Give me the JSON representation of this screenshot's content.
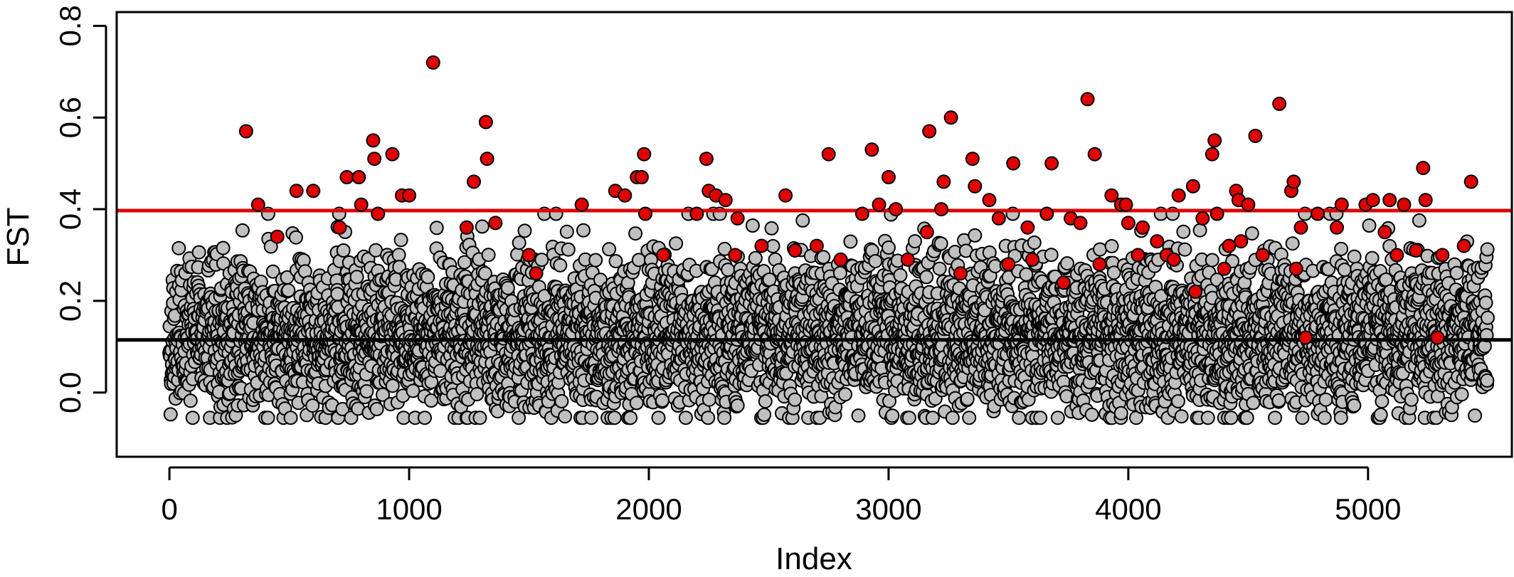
{
  "chart_data": {
    "type": "scatter",
    "title": "",
    "xlabel": "Index",
    "ylabel": "FST",
    "xlim": [
      -220,
      5600
    ],
    "ylim": [
      -0.14,
      0.83
    ],
    "x_ticks": [
      0,
      1000,
      2000,
      3000,
      4000,
      5000
    ],
    "x_tick_labels": [
      "0",
      "1000",
      "2000",
      "3000",
      "4000",
      "5000"
    ],
    "y_ticks": [
      0.0,
      0.2,
      0.4,
      0.6,
      0.8
    ],
    "y_tick_labels": [
      "0.0",
      "0.2",
      "0.4",
      "0.6",
      "0.8"
    ],
    "grid": false,
    "n_points": 5500,
    "reference_lines": [
      {
        "y": 0.397,
        "color": "#e00000"
      },
      {
        "y": 0.115,
        "color": "#000000"
      }
    ],
    "colors": {
      "background_points": "#c0c0c0",
      "outlier_points": "#e00000",
      "point_edge": "#000000"
    },
    "series": [
      {
        "color": "#e00000",
        "x": [
          320,
          370,
          450,
          530,
          600,
          710,
          740,
          790,
          800,
          850,
          855,
          870,
          930,
          970,
          1000,
          1100,
          1240,
          1270,
          1320,
          1325,
          1360,
          1500,
          1530,
          1720,
          1860,
          1900,
          1950,
          1970,
          1980,
          1985,
          2060,
          2200,
          2240,
          2250,
          2280,
          2320,
          2360,
          2370,
          2470,
          2570,
          2610,
          2700,
          2750,
          2800,
          2890,
          2930,
          2960,
          3000,
          3030,
          3080,
          3160,
          3170,
          3220,
          3230,
          3260,
          3300,
          3350,
          3360,
          3420,
          3460,
          3500,
          3520,
          3580,
          3600,
          3660,
          3680,
          3730,
          3760,
          3800,
          3830,
          3860,
          3880,
          3930,
          3970,
          3990,
          4000,
          4040,
          4060,
          4120,
          4160,
          4190,
          4210,
          4270,
          4280,
          4310,
          4350,
          4360,
          4370,
          4400,
          4420,
          4450,
          4460,
          4470,
          4500,
          4530,
          4560,
          4630,
          4680,
          4690,
          4700,
          4720,
          4740,
          4790,
          4870,
          4890,
          4990,
          5020,
          5070,
          5090,
          5120,
          5150,
          5200,
          5230,
          5240,
          5290,
          5310,
          5400,
          5430
        ],
        "y": [
          0.57,
          0.41,
          0.34,
          0.44,
          0.44,
          0.36,
          0.47,
          0.47,
          0.41,
          0.55,
          0.51,
          0.39,
          0.52,
          0.43,
          0.43,
          0.72,
          0.36,
          0.46,
          0.59,
          0.51,
          0.37,
          0.3,
          0.26,
          0.41,
          0.44,
          0.43,
          0.47,
          0.47,
          0.52,
          0.39,
          0.3,
          0.39,
          0.51,
          0.44,
          0.43,
          0.42,
          0.3,
          0.38,
          0.32,
          0.43,
          0.31,
          0.32,
          0.52,
          0.29,
          0.39,
          0.53,
          0.41,
          0.47,
          0.4,
          0.29,
          0.35,
          0.57,
          0.4,
          0.46,
          0.6,
          0.26,
          0.51,
          0.45,
          0.42,
          0.38,
          0.28,
          0.5,
          0.36,
          0.29,
          0.39,
          0.5,
          0.24,
          0.38,
          0.37,
          0.64,
          0.52,
          0.28,
          0.43,
          0.41,
          0.41,
          0.37,
          0.3,
          0.36,
          0.33,
          0.3,
          0.29,
          0.43,
          0.45,
          0.22,
          0.38,
          0.52,
          0.55,
          0.39,
          0.27,
          0.32,
          0.44,
          0.42,
          0.33,
          0.41,
          0.56,
          0.3,
          0.63,
          0.44,
          0.46,
          0.27,
          0.36,
          0.12,
          0.39,
          0.36,
          0.41,
          0.41,
          0.42,
          0.35,
          0.42,
          0.3,
          0.41,
          0.31,
          0.49,
          0.42,
          0.12,
          0.3,
          0.32,
          0.46
        ]
      }
    ]
  }
}
